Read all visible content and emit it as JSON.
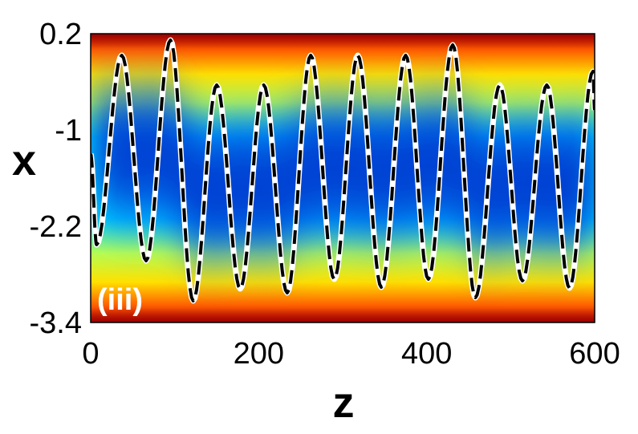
{
  "chart_data": {
    "type": "heatmap",
    "panel_label": "(iii)",
    "xlabel": "z",
    "ylabel": "x",
    "xlim": [
      0,
      600
    ],
    "ylim": [
      -3.4,
      0.2
    ],
    "x_ticks": [
      "0",
      "200",
      "400",
      "600"
    ],
    "y_ticks": [
      "0.2",
      "-1",
      "-2.2",
      "-3.4"
    ],
    "x_tick_values": [
      0,
      200,
      400,
      600
    ],
    "y_tick_values": [
      0.2,
      -1,
      -2.2,
      -3.4
    ],
    "colormap": [
      "#00008f",
      "#0060ff",
      "#00e0ff",
      "#b8ff50",
      "#ffe000",
      "#ff6000",
      "#c00000"
    ],
    "trajectory": {
      "peaks": [
        [
          37,
          -0.07
        ],
        [
          95,
          0.12
        ],
        [
          150,
          -0.44
        ],
        [
          206,
          -0.44
        ],
        [
          262,
          -0.07
        ],
        [
          318,
          -0.07
        ],
        [
          375,
          -0.07
        ],
        [
          431,
          0.06
        ],
        [
          487,
          -0.44
        ],
        [
          543,
          -0.44
        ],
        [
          598,
          -0.27
        ]
      ],
      "troughs": [
        [
          7,
          -2.43
        ],
        [
          66,
          -2.63
        ],
        [
          122,
          -3.13
        ],
        [
          178,
          -2.98
        ],
        [
          234,
          -3.03
        ],
        [
          290,
          -2.86
        ],
        [
          346,
          -2.96
        ],
        [
          402,
          -2.86
        ],
        [
          458,
          -3.09
        ],
        [
          514,
          -2.88
        ],
        [
          570,
          -2.97
        ]
      ],
      "start": [
        0,
        -1.3
      ],
      "end": [
        600,
        -0.75
      ]
    },
    "series": [
      {
        "style": "solid",
        "color": "#ffffff"
      },
      {
        "style": "dashed",
        "color": "#000000"
      }
    ]
  }
}
